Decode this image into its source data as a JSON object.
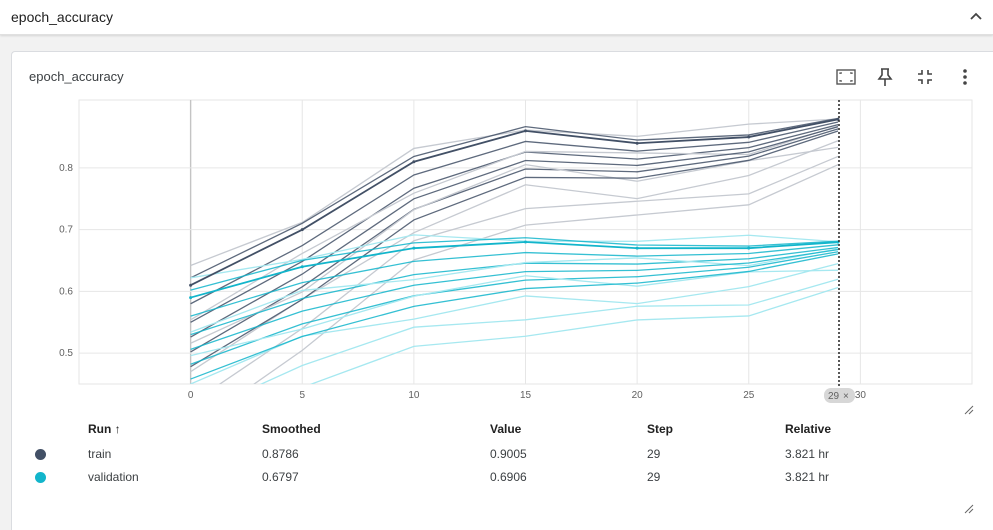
{
  "section": {
    "title": "epoch_accuracy"
  },
  "card": {
    "title": "epoch_accuracy"
  },
  "toolbar": {
    "icons": [
      "fit-domain-icon",
      "pin-icon",
      "collapse-card-icon",
      "more-vert-icon"
    ]
  },
  "colors": {
    "train": "#425066",
    "validation": "#12b5cb",
    "train_raw": "#c6cad1",
    "validation_raw": "#a6e8f0"
  },
  "chart_data": {
    "type": "line",
    "x_ticks": [
      "0",
      "5",
      "10",
      "15",
      "20",
      "25",
      "30"
    ],
    "y_ticks": [
      "0.5",
      "0.6",
      "0.7",
      "0.8"
    ],
    "xlim": [
      -5,
      35
    ],
    "ylim": [
      0.45,
      0.91
    ],
    "grid": true,
    "hover_step": "29",
    "series": [
      {
        "name": "train",
        "x": [
          0,
          5,
          10,
          15,
          20,
          25,
          29
        ],
        "values": [
          0.61,
          0.7,
          0.81,
          0.86,
          0.84,
          0.85,
          0.8786
        ]
      },
      {
        "name": "validation",
        "x": [
          0,
          5,
          10,
          15,
          20,
          25,
          29
        ],
        "values": [
          0.59,
          0.64,
          0.67,
          0.68,
          0.67,
          0.67,
          0.6797
        ]
      }
    ]
  },
  "hover": {
    "step_label": "29",
    "close_glyph": "×"
  },
  "table": {
    "headers": {
      "run": "Run ↑",
      "smoothed": "Smoothed",
      "value": "Value",
      "step": "Step",
      "relative": "Relative"
    },
    "rows": [
      {
        "run": "train",
        "smoothed": "0.8786",
        "value": "0.9005",
        "step": "29",
        "relative": "3.821 hr",
        "color": "#425066"
      },
      {
        "run": "validation",
        "smoothed": "0.6797",
        "value": "0.6906",
        "step": "29",
        "relative": "3.821 hr",
        "color": "#12b5cb"
      }
    ]
  }
}
